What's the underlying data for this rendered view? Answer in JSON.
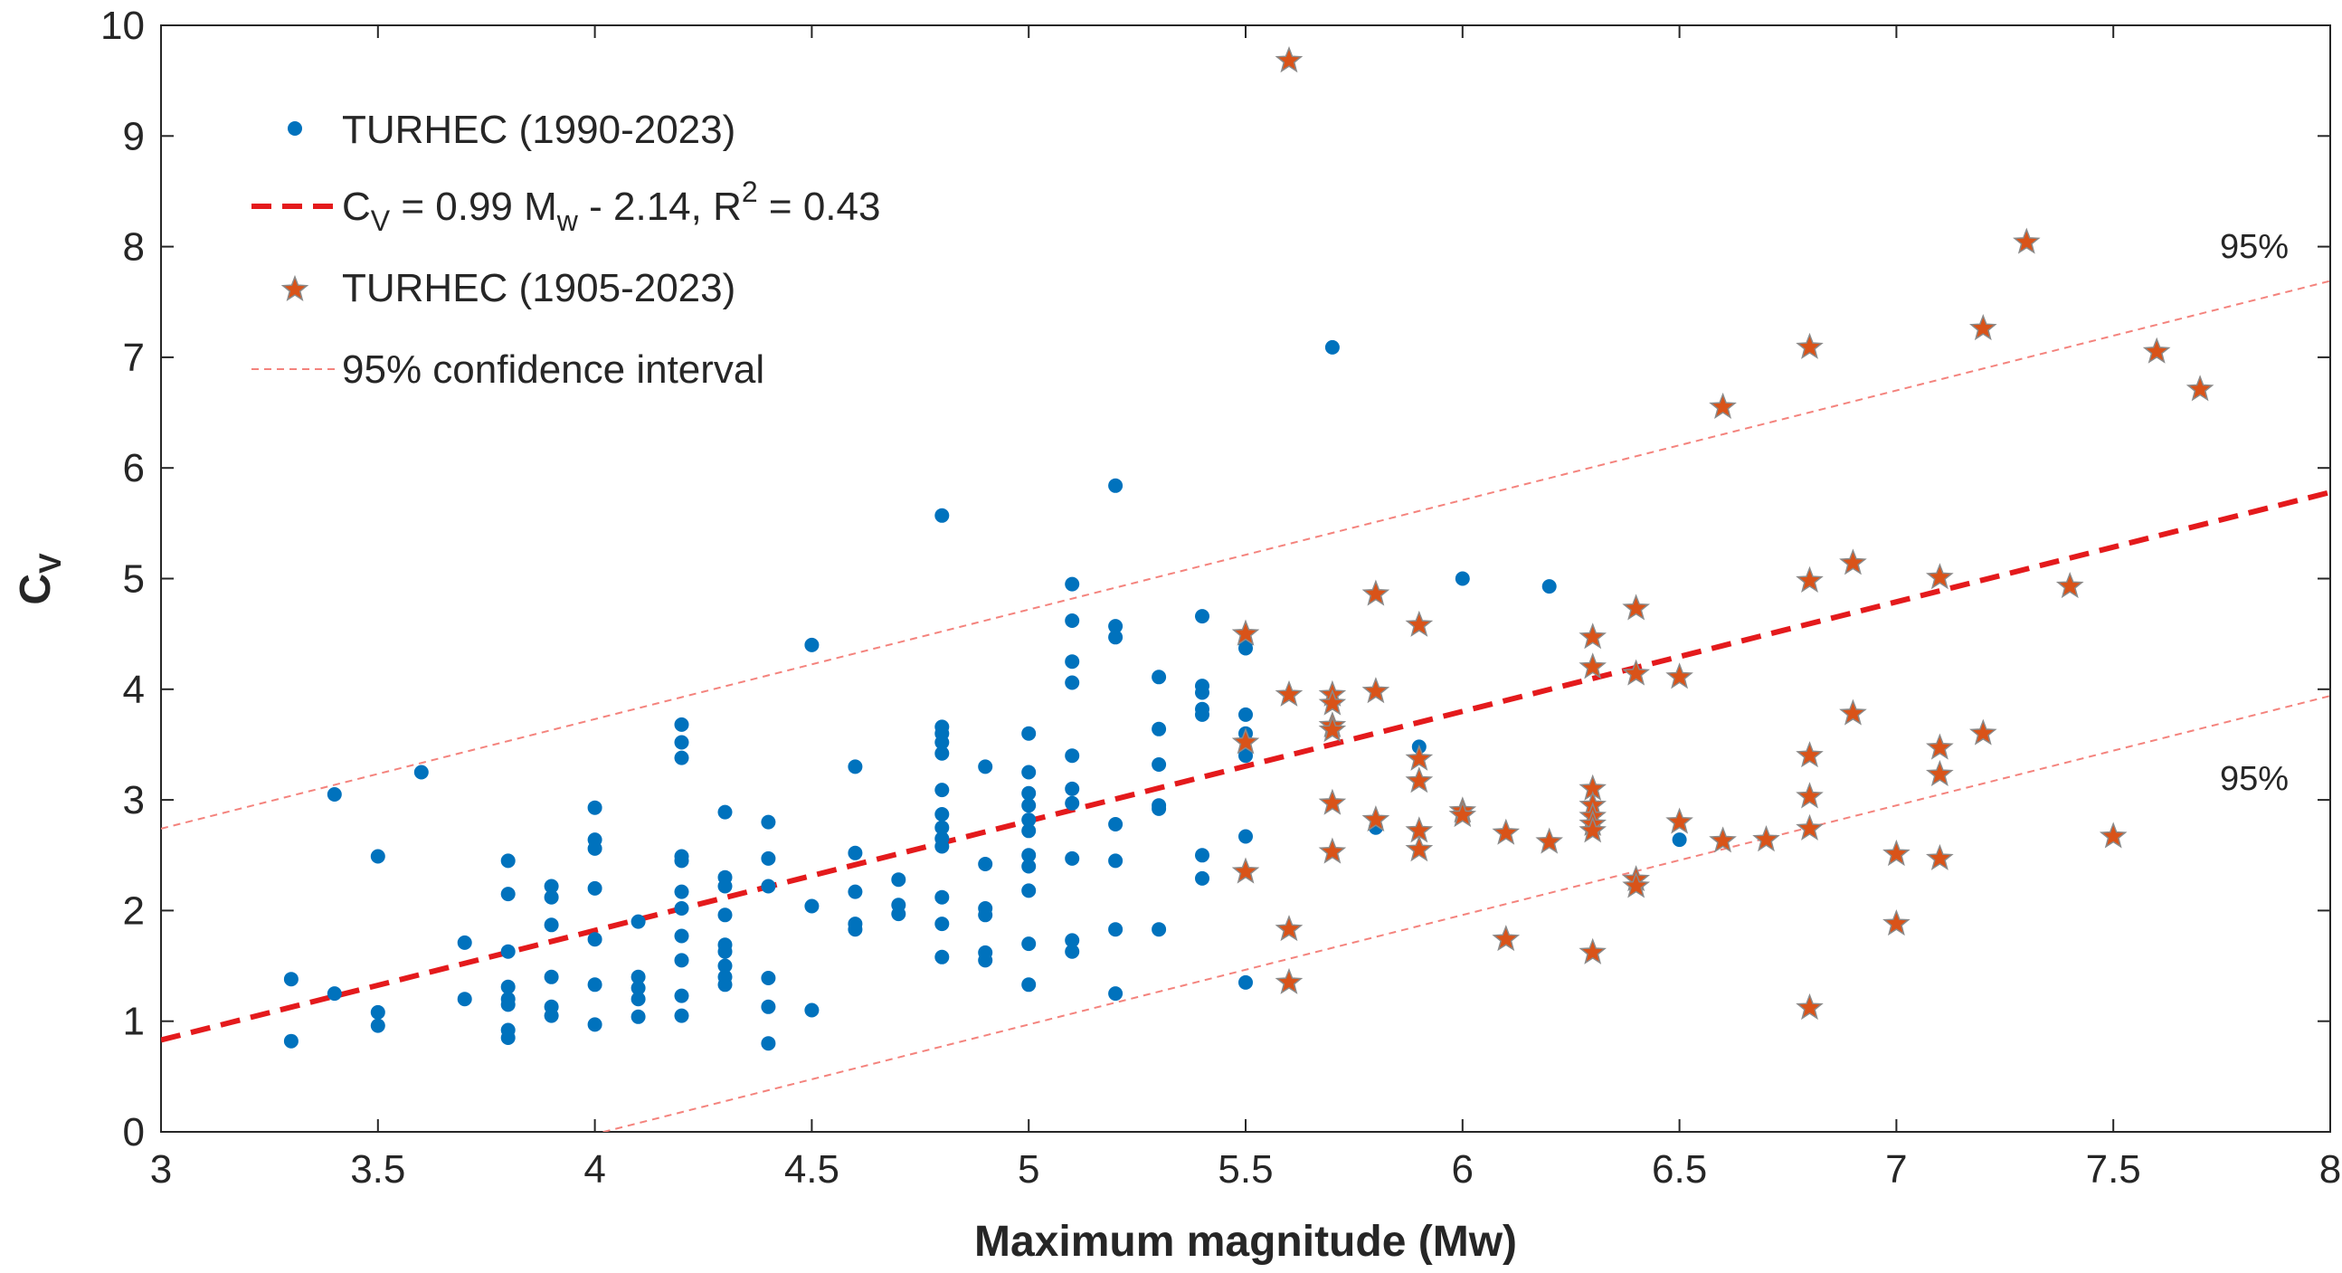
{
  "chart_data": {
    "type": "scatter",
    "title": "",
    "xlabel": "Maximum magnitude (Mw)",
    "ylabel": {
      "main": "C",
      "sub": "V"
    },
    "xlim": [
      3,
      8
    ],
    "ylim": [
      0,
      10
    ],
    "x_ticks": [
      "3",
      "3.5",
      "4",
      "4.5",
      "5",
      "5.5",
      "6",
      "6.5",
      "7",
      "7.5",
      "8"
    ],
    "y_ticks": [
      "0",
      "1",
      "2",
      "3",
      "4",
      "5",
      "6",
      "7",
      "8",
      "9",
      "10"
    ],
    "legend_position": "top-left",
    "legend": [
      {
        "kind": "dot",
        "label": "TURHEC (1990-2023)"
      },
      {
        "kind": "fit-line",
        "label_parts": [
          "C",
          "V",
          " = 0.99 M",
          "w",
          " - 2.14, R",
          "2",
          " = 0.43"
        ]
      },
      {
        "kind": "star",
        "label": "TURHEC (1905-2023)"
      },
      {
        "kind": "ci-line",
        "label": "95% confidence interval"
      }
    ],
    "annotations": [
      "95%",
      "95%"
    ],
    "colors": {
      "dots": "#0072BD",
      "stars": "#D95319",
      "star_edge": "#8a8a8a",
      "fit": "#E41A1C",
      "ci": "#F4837D",
      "axis": "#262626"
    },
    "fit": {
      "slope": 0.99,
      "intercept": -2.14
    },
    "ci": {
      "upper_intercept": -0.23,
      "lower_intercept": -3.98
    },
    "series": [
      {
        "name": "TURHEC (1990-2023)",
        "marker": "dot",
        "points": [
          [
            3.3,
            1.38
          ],
          [
            3.3,
            0.82
          ],
          [
            3.4,
            3.05
          ],
          [
            3.4,
            1.25
          ],
          [
            3.5,
            2.49
          ],
          [
            3.5,
            1.08
          ],
          [
            3.5,
            0.96
          ],
          [
            3.6,
            3.25
          ],
          [
            3.7,
            1.71
          ],
          [
            3.7,
            1.2
          ],
          [
            3.8,
            2.45
          ],
          [
            3.8,
            2.15
          ],
          [
            3.8,
            1.63
          ],
          [
            3.8,
            1.31
          ],
          [
            3.8,
            1.2
          ],
          [
            3.8,
            1.15
          ],
          [
            3.8,
            0.92
          ],
          [
            3.8,
            0.85
          ],
          [
            3.9,
            2.22
          ],
          [
            3.9,
            2.12
          ],
          [
            3.9,
            1.87
          ],
          [
            3.9,
            1.4
          ],
          [
            3.9,
            1.13
          ],
          [
            3.9,
            1.05
          ],
          [
            4.0,
            2.93
          ],
          [
            4.0,
            2.64
          ],
          [
            4.0,
            2.56
          ],
          [
            4.0,
            2.2
          ],
          [
            4.0,
            1.74
          ],
          [
            4.0,
            1.33
          ],
          [
            4.0,
            0.97
          ],
          [
            4.1,
            1.9
          ],
          [
            4.1,
            1.4
          ],
          [
            4.1,
            1.3
          ],
          [
            4.1,
            1.2
          ],
          [
            4.1,
            1.04
          ],
          [
            4.2,
            3.68
          ],
          [
            4.2,
            3.52
          ],
          [
            4.2,
            3.38
          ],
          [
            4.2,
            2.49
          ],
          [
            4.2,
            2.45
          ],
          [
            4.2,
            2.17
          ],
          [
            4.2,
            2.02
          ],
          [
            4.2,
            1.77
          ],
          [
            4.2,
            1.55
          ],
          [
            4.2,
            1.23
          ],
          [
            4.2,
            1.05
          ],
          [
            4.3,
            2.89
          ],
          [
            4.3,
            2.3
          ],
          [
            4.3,
            2.22
          ],
          [
            4.3,
            1.96
          ],
          [
            4.3,
            1.69
          ],
          [
            4.3,
            1.63
          ],
          [
            4.3,
            1.5
          ],
          [
            4.3,
            1.4
          ],
          [
            4.3,
            1.33
          ],
          [
            4.4,
            2.8
          ],
          [
            4.4,
            2.47
          ],
          [
            4.4,
            2.22
          ],
          [
            4.4,
            1.39
          ],
          [
            4.4,
            1.13
          ],
          [
            4.4,
            0.8
          ],
          [
            4.5,
            4.4
          ],
          [
            4.5,
            2.04
          ],
          [
            4.5,
            1.1
          ],
          [
            4.6,
            3.3
          ],
          [
            4.6,
            2.52
          ],
          [
            4.6,
            2.17
          ],
          [
            4.6,
            1.88
          ],
          [
            4.6,
            1.83
          ],
          [
            4.7,
            2.28
          ],
          [
            4.7,
            2.05
          ],
          [
            4.7,
            1.97
          ],
          [
            4.8,
            5.57
          ],
          [
            4.8,
            3.66
          ],
          [
            4.8,
            3.6
          ],
          [
            4.8,
            3.52
          ],
          [
            4.8,
            3.42
          ],
          [
            4.8,
            3.09
          ],
          [
            4.8,
            2.87
          ],
          [
            4.8,
            2.75
          ],
          [
            4.8,
            2.65
          ],
          [
            4.8,
            2.58
          ],
          [
            4.8,
            2.12
          ],
          [
            4.8,
            1.88
          ],
          [
            4.8,
            1.58
          ],
          [
            4.9,
            3.3
          ],
          [
            4.9,
            2.42
          ],
          [
            4.9,
            2.02
          ],
          [
            4.9,
            1.96
          ],
          [
            4.9,
            1.62
          ],
          [
            4.9,
            1.55
          ],
          [
            5.0,
            3.6
          ],
          [
            5.0,
            3.25
          ],
          [
            5.0,
            3.06
          ],
          [
            5.0,
            2.95
          ],
          [
            5.0,
            2.82
          ],
          [
            5.0,
            2.72
          ],
          [
            5.0,
            2.5
          ],
          [
            5.0,
            2.4
          ],
          [
            5.0,
            2.18
          ],
          [
            5.0,
            1.7
          ],
          [
            5.0,
            1.33
          ],
          [
            5.1,
            4.95
          ],
          [
            5.1,
            4.62
          ],
          [
            5.1,
            4.25
          ],
          [
            5.1,
            4.06
          ],
          [
            5.1,
            3.4
          ],
          [
            5.1,
            3.1
          ],
          [
            5.1,
            2.97
          ],
          [
            5.1,
            2.47
          ],
          [
            5.1,
            1.73
          ],
          [
            5.1,
            1.63
          ],
          [
            5.2,
            5.84
          ],
          [
            5.2,
            4.57
          ],
          [
            5.2,
            4.47
          ],
          [
            5.2,
            2.78
          ],
          [
            5.2,
            2.45
          ],
          [
            5.2,
            1.83
          ],
          [
            5.2,
            1.25
          ],
          [
            5.3,
            4.11
          ],
          [
            5.3,
            3.64
          ],
          [
            5.3,
            3.32
          ],
          [
            5.3,
            2.95
          ],
          [
            5.3,
            2.92
          ],
          [
            5.3,
            1.83
          ],
          [
            5.4,
            4.66
          ],
          [
            5.4,
            4.03
          ],
          [
            5.4,
            3.97
          ],
          [
            5.4,
            3.82
          ],
          [
            5.4,
            3.77
          ],
          [
            5.4,
            2.5
          ],
          [
            5.4,
            2.29
          ],
          [
            5.5,
            4.42
          ],
          [
            5.5,
            4.37
          ],
          [
            5.5,
            3.77
          ],
          [
            5.5,
            3.6
          ],
          [
            5.5,
            3.4
          ],
          [
            5.5,
            2.67
          ],
          [
            5.5,
            1.35
          ],
          [
            5.7,
            7.09
          ],
          [
            5.8,
            2.75
          ],
          [
            5.9,
            3.48
          ],
          [
            6.0,
            5.0
          ],
          [
            6.2,
            4.93
          ],
          [
            6.5,
            2.64
          ]
        ]
      },
      {
        "name": "TURHEC (1905-2023)",
        "marker": "star",
        "points": [
          [
            5.5,
            4.5
          ],
          [
            5.5,
            3.52
          ],
          [
            5.5,
            2.35
          ],
          [
            5.6,
            9.68
          ],
          [
            5.6,
            3.95
          ],
          [
            5.6,
            1.83
          ],
          [
            5.6,
            1.35
          ],
          [
            5.7,
            3.95
          ],
          [
            5.7,
            3.87
          ],
          [
            5.7,
            3.67
          ],
          [
            5.7,
            3.63
          ],
          [
            5.7,
            2.97
          ],
          [
            5.7,
            2.53
          ],
          [
            5.8,
            4.86
          ],
          [
            5.8,
            3.98
          ],
          [
            5.8,
            2.82
          ],
          [
            5.9,
            4.58
          ],
          [
            5.9,
            3.37
          ],
          [
            5.9,
            3.17
          ],
          [
            5.9,
            2.72
          ],
          [
            5.9,
            2.55
          ],
          [
            6.0,
            2.9
          ],
          [
            6.0,
            2.86
          ],
          [
            6.1,
            2.7
          ],
          [
            6.1,
            1.74
          ],
          [
            6.2,
            2.62
          ],
          [
            6.3,
            4.47
          ],
          [
            6.3,
            4.2
          ],
          [
            6.3,
            3.1
          ],
          [
            6.3,
            2.95
          ],
          [
            6.3,
            2.85
          ],
          [
            6.3,
            2.78
          ],
          [
            6.3,
            2.72
          ],
          [
            6.3,
            1.62
          ],
          [
            6.4,
            4.73
          ],
          [
            6.4,
            4.14
          ],
          [
            6.4,
            2.28
          ],
          [
            6.4,
            2.22
          ],
          [
            6.5,
            4.11
          ],
          [
            6.5,
            2.8
          ],
          [
            6.6,
            6.55
          ],
          [
            6.6,
            2.63
          ],
          [
            6.7,
            2.64
          ],
          [
            6.8,
            7.09
          ],
          [
            6.8,
            4.98
          ],
          [
            6.8,
            3.4
          ],
          [
            6.8,
            3.03
          ],
          [
            6.8,
            2.74
          ],
          [
            6.8,
            1.12
          ],
          [
            6.9,
            5.14
          ],
          [
            6.9,
            3.78
          ],
          [
            7.0,
            2.51
          ],
          [
            7.0,
            1.88
          ],
          [
            7.1,
            5.01
          ],
          [
            7.1,
            3.47
          ],
          [
            7.1,
            3.23
          ],
          [
            7.1,
            2.47
          ],
          [
            7.2,
            7.26
          ],
          [
            7.2,
            3.6
          ],
          [
            7.3,
            8.04
          ],
          [
            7.4,
            4.93
          ],
          [
            7.5,
            2.67
          ],
          [
            7.6,
            7.05
          ],
          [
            7.7,
            6.71
          ]
        ]
      }
    ]
  }
}
